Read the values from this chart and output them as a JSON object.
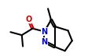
{
  "bg_color": "#ffffff",
  "bond_color": "#000000",
  "atom_colors": {
    "N": "#0000cc",
    "O": "#cc0000",
    "C": "#000000"
  },
  "line_width": 1.5,
  "font_size_atom": 7
}
